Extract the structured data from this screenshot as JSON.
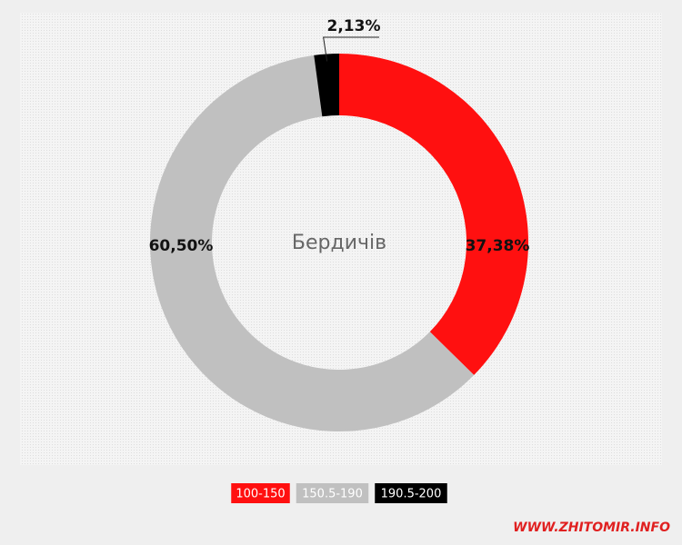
{
  "chart_data": {
    "type": "donut",
    "center_label": "Бердичів",
    "categories": [
      "100-150",
      "150.5-190",
      "190.5-200"
    ],
    "values": [
      37.38,
      60.5,
      2.13
    ],
    "value_labels": [
      "37,38%",
      "60,50%",
      "2,13%"
    ],
    "colors": [
      "#ff1010",
      "#c0c0c0",
      "#000000"
    ]
  },
  "watermark": "WWW.ZHITOMIR.INFO"
}
